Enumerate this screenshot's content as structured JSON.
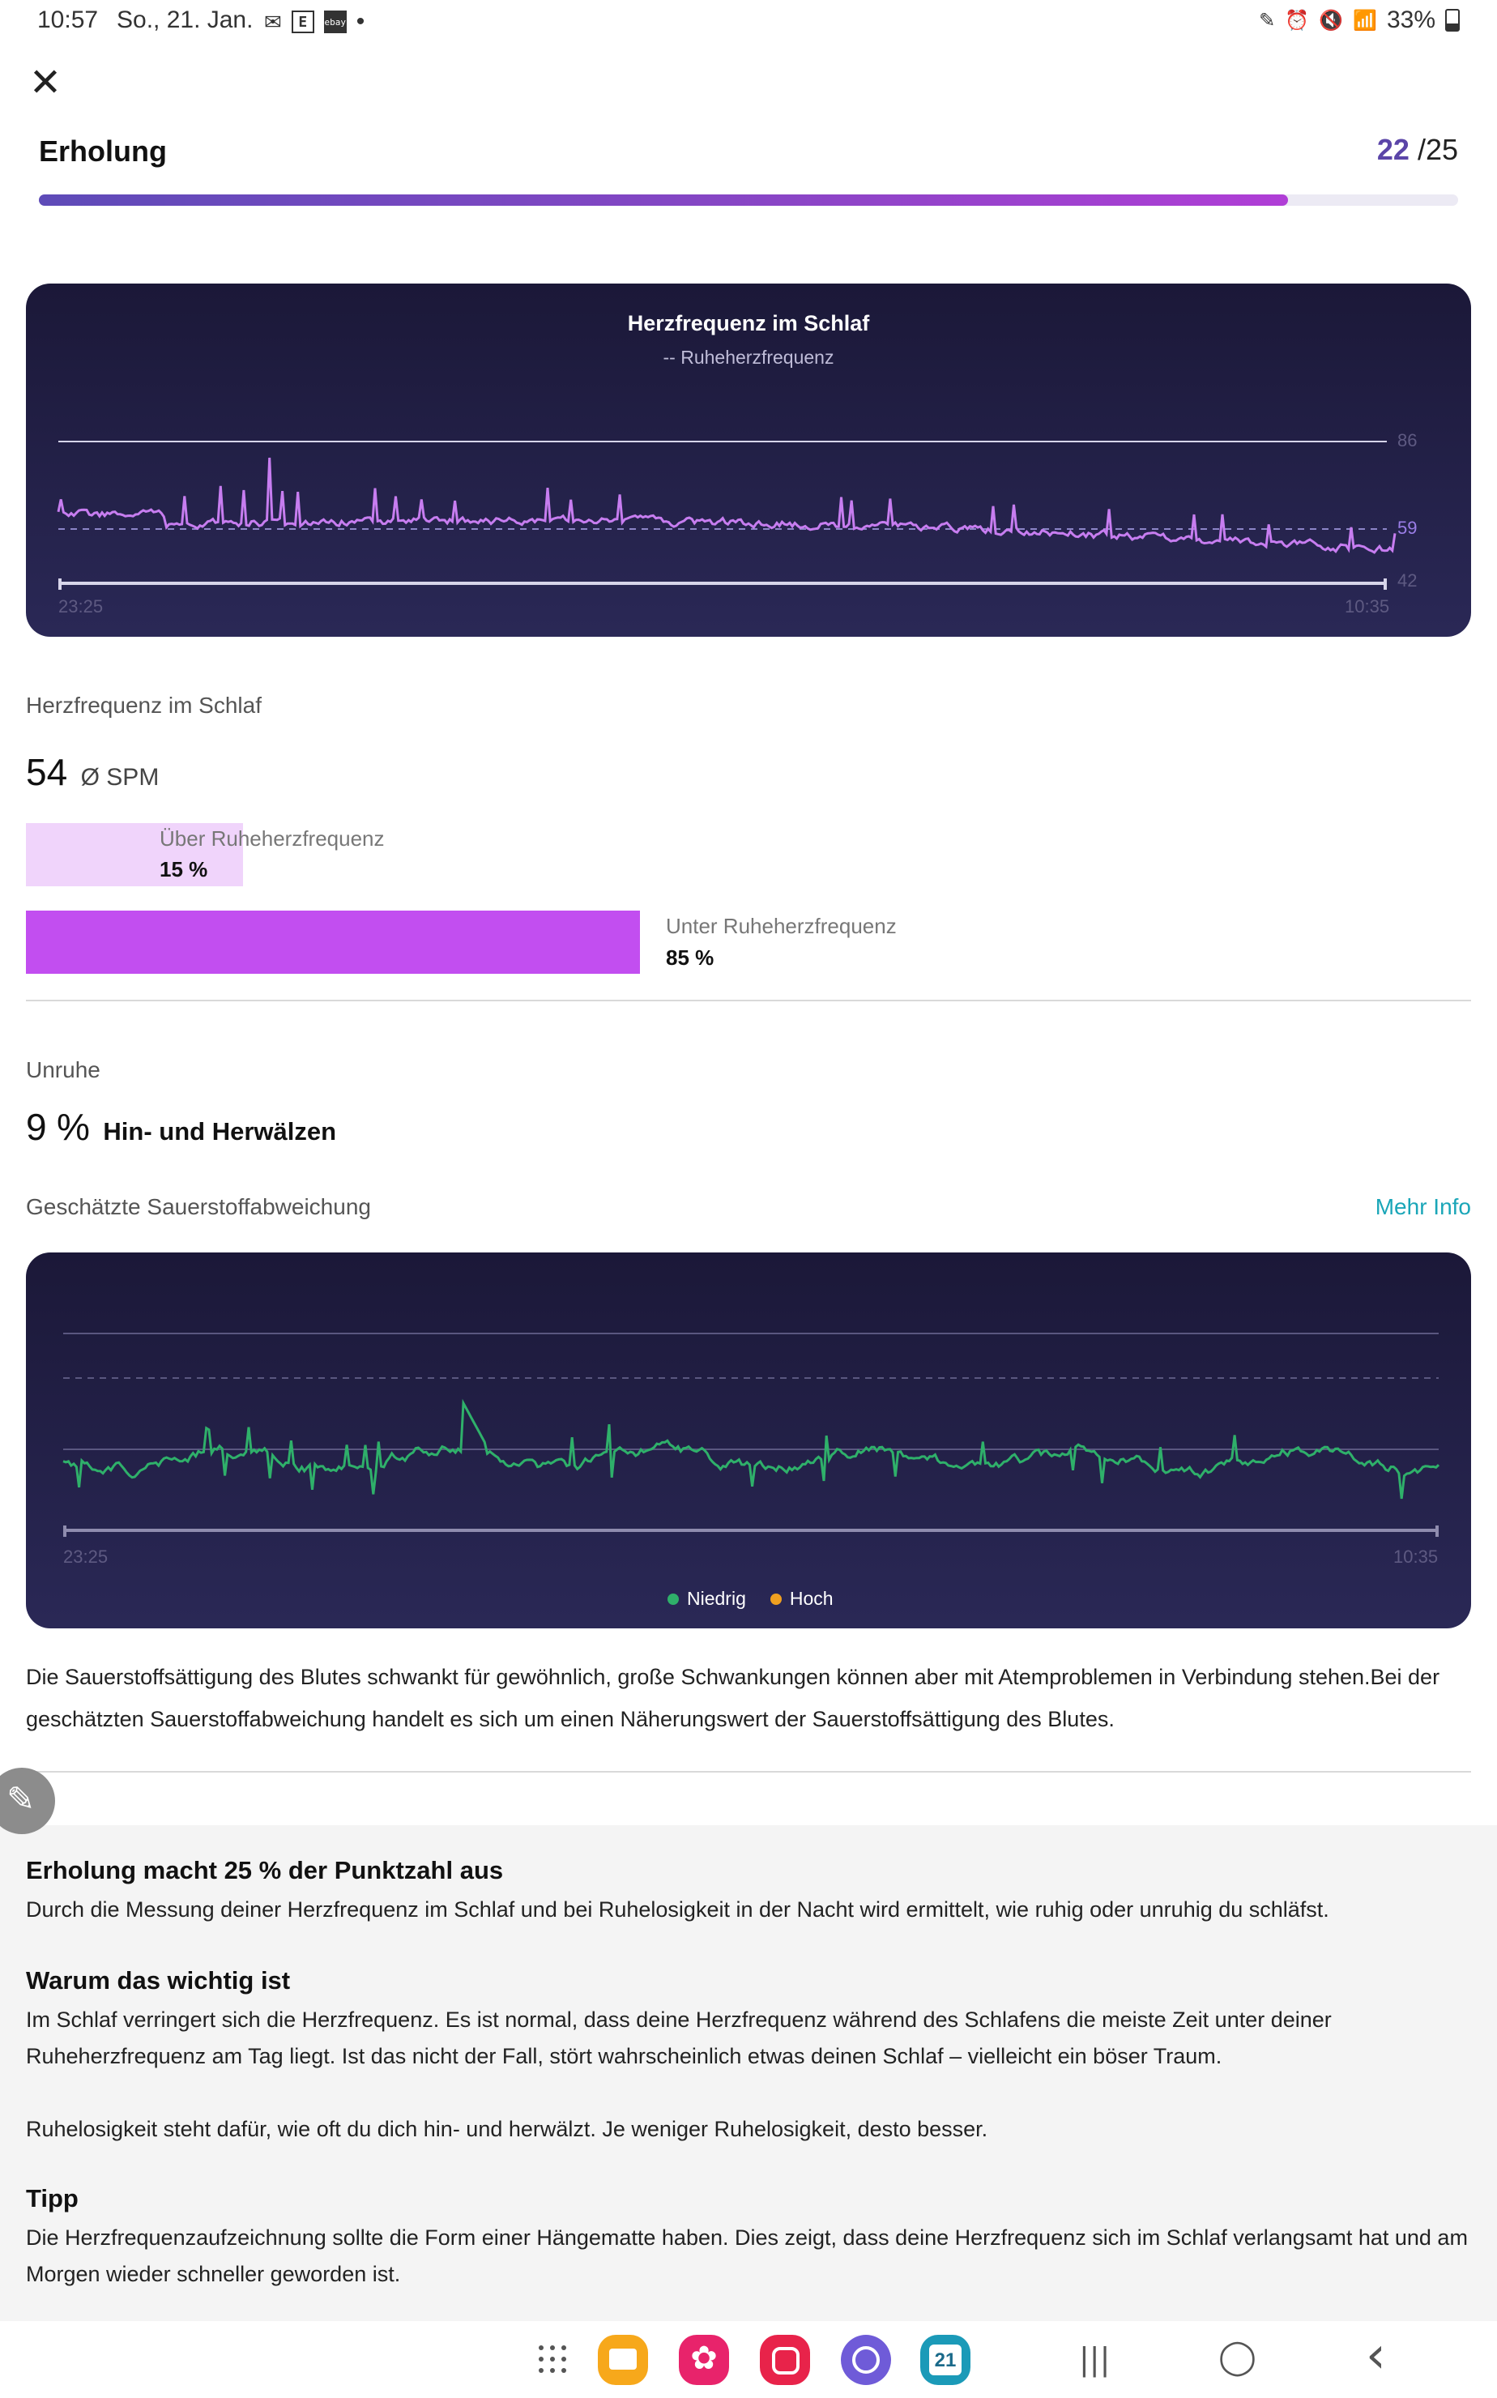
{
  "status_bar": {
    "time": "10:57",
    "date": "So., 21. Jan.",
    "battery": "33%",
    "notification_icons": [
      "mail-icon",
      "edeka-icon",
      "ebay-icon"
    ],
    "ebay_label": "ebay",
    "more": "•"
  },
  "header": {
    "close_label": "✕",
    "title": "Erholung",
    "score_current": "22",
    "score_total": "/25",
    "progress": 0.88
  },
  "hr_chart": {
    "chart_data": {
      "type": "line",
      "title": "Herzfrequenz im Schlaf",
      "subtitle": "-- Ruheherzfrequenz",
      "x_start": "23:25",
      "x_end": "10:35",
      "y_ticks": [
        "86",
        "59",
        "42"
      ],
      "ylim": [
        42,
        86
      ],
      "resting_hr": 59,
      "series_color": "#c77df0"
    }
  },
  "hr_section": {
    "label": "Herzfrequenz im Schlaf",
    "value": "54",
    "unit": "Ø SPM",
    "above_label": "Über Ruheherzfrequenz",
    "above_value": "15 %",
    "above_fraction": 0.15,
    "below_label": "Unter Ruheherzfrequenz",
    "below_value": "85 %",
    "below_fraction": 0.85,
    "above_color": "#f0d4fb",
    "below_color": "#c24ef0"
  },
  "restless": {
    "label": "Unruhe",
    "value": "9",
    "unit": "%",
    "desc": "Hin- und Herwälzen"
  },
  "oxygen": {
    "label": "Geschätzte Sauerstoffabweichung",
    "more_info": "Mehr Info",
    "chart_data": {
      "type": "line",
      "x_start": "23:25",
      "x_end": "10:35",
      "series_color": "#2fb06a",
      "legend": [
        {
          "name": "Niedrig",
          "color": "#2fb06a"
        },
        {
          "name": "Hoch",
          "color": "#f0a020"
        }
      ]
    },
    "description": "Die Sauerstoffsättigung des Blutes schwankt für gewöhnlich, große Schwankungen können aber mit Atemproblemen in Verbindung stehen.Bei der geschätzten Sauerstoffabweichung handelt es sich um einen Näherungswert der Sauerstoffsättigung des Blutes."
  },
  "info": {
    "h1": "Erholung macht 25 % der Punktzahl aus",
    "p1": "Durch die Messung deiner Herzfrequenz im Schlaf und bei Ruhelosigkeit in der Nacht wird ermittelt, wie ruhig oder unruhig du schläfst.",
    "h2": "Warum das wichtig ist",
    "p2": "Im Schlaf verringert sich die Herzfrequenz. Es ist normal, dass deine Herzfrequenz während des Schlafens die meiste Zeit unter deiner Ruheherzfrequenz am Tag liegt. Ist das nicht der Fall, stört wahrscheinlich etwas deinen Schlaf – vielleicht ein böser Traum.",
    "p3": "Ruhelosigkeit steht dafür, wie oft du dich hin- und herwälzt. Je weniger Ruhelosigkeit, desto besser.",
    "h3": "Tipp",
    "p4": "Die Herzfrequenzaufzeichnung sollte die Form einer Hängematte haben. Dies zeigt, dass deine Herzfrequenz sich im Schlaf verlangsamt hat und am Morgen wieder schneller geworden ist."
  },
  "navbar": {
    "calendar_day": "21",
    "recents_label": "|||",
    "home_label": "◯",
    "back_label": "‹"
  }
}
